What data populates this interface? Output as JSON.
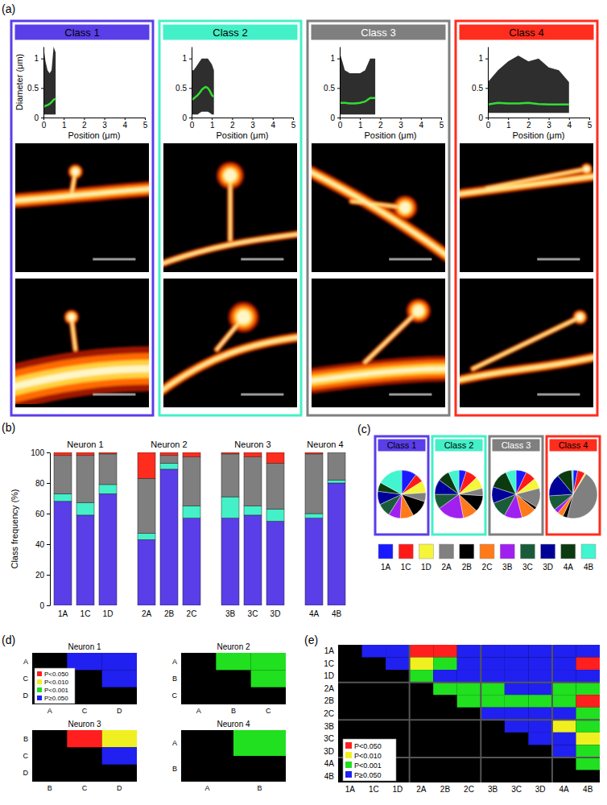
{
  "chart_data": [
    {
      "type": "line",
      "panel": "(a)",
      "title": "Class 1",
      "color": "#5a3ee8",
      "xlabel": "Position (μm)",
      "ylabel": "Diameter (μm)",
      "xlim": [
        0,
        5
      ],
      "xticks": [
        0,
        1,
        2,
        3,
        4,
        5
      ],
      "ylim": [
        0,
        1.2
      ],
      "yticks": [
        0,
        0.5,
        1
      ],
      "x": [
        0,
        0.1,
        0.2,
        0.3,
        0.4,
        0.5,
        0.6
      ],
      "series": [
        {
          "type": "area",
          "color": "#000000",
          "values": [
            1.2,
            0.95,
            0.8,
            0.75,
            0.8,
            1.2,
            1.1
          ],
          "lower": [
            0.05,
            0.05,
            0.05,
            0.05,
            0.05,
            0.05,
            0.05
          ]
        },
        {
          "type": "line",
          "color": "#33dd33",
          "values": [
            0.18,
            0.2,
            0.21,
            0.23,
            0.26,
            0.3,
            0.32
          ]
        }
      ]
    },
    {
      "type": "line",
      "title": "Class 2",
      "color": "#44f0c8",
      "xlabel": "Position (μm)",
      "xlim": [
        0,
        5
      ],
      "xticks": [
        0,
        1,
        2,
        3,
        4,
        5
      ],
      "ylim": [
        0,
        1.2
      ],
      "yticks": [
        0,
        0.5,
        1
      ],
      "x": [
        0,
        0.1,
        0.2,
        0.3,
        0.4,
        0.5,
        0.6,
        0.7,
        0.8,
        0.9,
        1,
        1.1
      ],
      "series": [
        {
          "type": "area",
          "color": "#000000",
          "values": [
            0.8,
            0.8,
            0.85,
            0.9,
            0.95,
            1,
            1,
            1,
            1,
            0.95,
            0.9,
            0.8
          ],
          "lower": [
            0.05,
            0.05,
            0.05,
            0.05,
            0.08,
            0.1,
            0.1,
            0.1,
            0.1,
            0.08,
            0.05,
            0.05
          ]
        },
        {
          "type": "line",
          "color": "#33dd33",
          "values": [
            0.3,
            0.32,
            0.35,
            0.38,
            0.42,
            0.47,
            0.5,
            0.52,
            0.5,
            0.45,
            0.38,
            0.35
          ]
        }
      ]
    },
    {
      "type": "line",
      "title": "Class 3",
      "color": "#7f7f7f",
      "xlabel": "Position (μm)",
      "xlim": [
        0,
        5
      ],
      "xticks": [
        0,
        1,
        2,
        3,
        4,
        5
      ],
      "ylim": [
        0,
        1.2
      ],
      "yticks": [
        0,
        0.5,
        1
      ],
      "x": [
        0,
        0.25,
        0.5,
        0.75,
        1,
        1.25,
        1.5,
        1.75
      ],
      "series": [
        {
          "type": "area",
          "color": "#000000",
          "values": [
            1.1,
            0.8,
            0.75,
            0.75,
            0.75,
            0.8,
            1,
            1
          ],
          "lower": [
            0.05,
            0.05,
            0.05,
            0.05,
            0.05,
            0.05,
            0.05,
            0.05
          ]
        },
        {
          "type": "line",
          "color": "#33dd33",
          "values": [
            0.25,
            0.25,
            0.24,
            0.24,
            0.25,
            0.27,
            0.33,
            0.33
          ]
        }
      ]
    },
    {
      "type": "line",
      "title": "Class 4",
      "color": "#ff2d1e",
      "xlabel": "Position (μm)",
      "xlim": [
        0,
        5
      ],
      "xticks": [
        0,
        1,
        2,
        3,
        4,
        5
      ],
      "ylim": [
        0,
        1.2
      ],
      "yticks": [
        0,
        0.5,
        1
      ],
      "x": [
        0,
        0.5,
        1,
        1.5,
        2,
        2.5,
        3,
        3.5,
        4
      ],
      "series": [
        {
          "type": "area",
          "color": "#000000",
          "values": [
            0.6,
            0.8,
            0.95,
            1.05,
            0.95,
            1,
            0.85,
            0.8,
            0.6
          ],
          "lower": [
            0.08,
            0.08,
            0.08,
            0.08,
            0.08,
            0.08,
            0.08,
            0.08,
            0.08
          ]
        },
        {
          "type": "line",
          "color": "#33dd33",
          "values": [
            0.22,
            0.25,
            0.24,
            0.24,
            0.25,
            0.23,
            0.22,
            0.22,
            0.22
          ]
        }
      ]
    },
    {
      "type": "bar",
      "panel": "(b)",
      "stacked": true,
      "ylabel": "Class frequency (%)",
      "ylim": [
        0,
        100
      ],
      "yticks": [
        0,
        20,
        40,
        60,
        80,
        100
      ],
      "groups": [
        {
          "label": "Neuron 1",
          "categories": [
            "1A",
            "1C",
            "1D"
          ]
        },
        {
          "label": "Neuron 2",
          "categories": [
            "2A",
            "2B",
            "2C"
          ]
        },
        {
          "label": "Neuron 3",
          "categories": [
            "3B",
            "3C",
            "3D"
          ]
        },
        {
          "label": "Neuron 4",
          "categories": [
            "4A",
            "4B"
          ]
        }
      ],
      "series": [
        {
          "color": "#5a3ee8",
          "values": [
            68,
            59,
            73,
            43,
            89,
            57,
            57,
            59,
            55,
            57,
            80
          ]
        },
        {
          "color": "#44f0c8",
          "values": [
            5,
            8,
            6,
            4,
            4,
            8,
            14,
            6,
            8,
            3,
            2
          ]
        },
        {
          "color": "#7f7f7f",
          "values": [
            25,
            31,
            20,
            36,
            5,
            32,
            28,
            32,
            30,
            39,
            18
          ]
        },
        {
          "color": "#ff2d1e",
          "values": [
            2,
            2,
            1,
            17,
            2,
            3,
            1,
            3,
            7,
            1,
            0
          ]
        }
      ]
    },
    {
      "type": "pie",
      "panel": "(c)",
      "legend": "bottom",
      "categories": [
        "1A",
        "1C",
        "1D",
        "2A",
        "2B",
        "2C",
        "3B",
        "3C",
        "3D",
        "4A",
        "4B"
      ],
      "colors": [
        "#1a1aff",
        "#ff1a1a",
        "#f5f53a",
        "#808080",
        "#000000",
        "#ff7a1a",
        "#a020f0",
        "#1a5c3a",
        "#000099",
        "#0b3a10",
        "#40f5d0"
      ],
      "series": [
        {
          "name": "Class 1",
          "color": "#5a3ee8",
          "values": [
            10,
            6,
            8,
            6,
            12,
            9,
            8,
            9,
            9,
            6,
            17
          ]
        },
        {
          "name": "Class 2",
          "color": "#44f0c8",
          "values": [
            5,
            8,
            8,
            5,
            11,
            10,
            18,
            10,
            10,
            8,
            7
          ]
        },
        {
          "name": "Class 3",
          "color": "#7f7f7f",
          "values": [
            7,
            7,
            7,
            13,
            2,
            10,
            12,
            11,
            11,
            13,
            7
          ]
        },
        {
          "name": "Class 4",
          "color": "#ff2d1e",
          "values": [
            3,
            5,
            1,
            45,
            3,
            4,
            3,
            10,
            15,
            10,
            1
          ]
        }
      ]
    },
    {
      "type": "heatmap",
      "panel": "(d)",
      "legend": "lower left",
      "levels": [
        {
          "label": "P<0.050",
          "color": "#ff1f1f"
        },
        {
          "label": "P<0.010",
          "color": "#f0f020"
        },
        {
          "label": "P<0.001",
          "color": "#20e020"
        },
        {
          "label": "P≥0.050",
          "color": "#2020f0"
        }
      ],
      "panels": [
        {
          "title": "Neuron 1",
          "labels": [
            "A",
            "C",
            "D"
          ],
          "cells": [
            [
              null,
              3,
              3
            ],
            [
              null,
              null,
              3
            ],
            [
              null,
              null,
              null
            ]
          ]
        },
        {
          "title": "Neuron 2",
          "labels": [
            "A",
            "B",
            "C"
          ],
          "cells": [
            [
              null,
              2,
              2
            ],
            [
              null,
              null,
              2
            ],
            [
              null,
              null,
              null
            ]
          ]
        },
        {
          "title": "Neuron 3",
          "labels": [
            "B",
            "C",
            "D"
          ],
          "cells": [
            [
              null,
              0,
              1
            ],
            [
              null,
              null,
              3
            ],
            [
              null,
              null,
              null
            ]
          ]
        },
        {
          "title": "Neuron 4",
          "labels": [
            "A",
            "B"
          ],
          "cells": [
            [
              null,
              2
            ],
            [
              null,
              null
            ]
          ]
        }
      ]
    },
    {
      "type": "heatmap",
      "panel": "(e)",
      "legend": "lower left",
      "levels": [
        {
          "label": "P<0.050",
          "color": "#ff1f1f"
        },
        {
          "label": "P<0.010",
          "color": "#f0f020"
        },
        {
          "label": "P<0.001",
          "color": "#20e020"
        },
        {
          "label": "P≥0.050",
          "color": "#2020f0"
        }
      ],
      "groups": [
        [
          "1A",
          "1C",
          "1D"
        ],
        [
          "2A",
          "2B",
          "2C"
        ],
        [
          "3B",
          "3C",
          "3D"
        ],
        [
          "4A",
          "4B"
        ]
      ],
      "cells": [
        [
          null,
          3,
          3,
          0,
          0,
          3,
          3,
          3,
          3,
          3,
          3
        ],
        [
          null,
          null,
          3,
          1,
          2,
          3,
          3,
          3,
          3,
          3,
          0
        ],
        [
          null,
          null,
          null,
          2,
          3,
          3,
          3,
          3,
          3,
          3,
          3
        ],
        [
          null,
          null,
          null,
          null,
          2,
          2,
          2,
          3,
          3,
          2,
          2
        ],
        [
          null,
          null,
          null,
          null,
          null,
          2,
          2,
          2,
          2,
          2,
          0
        ],
        [
          null,
          null,
          null,
          null,
          null,
          null,
          3,
          3,
          3,
          3,
          2
        ],
        [
          null,
          null,
          null,
          null,
          null,
          null,
          null,
          3,
          3,
          1,
          2
        ],
        [
          null,
          null,
          null,
          null,
          null,
          null,
          null,
          null,
          3,
          3,
          1
        ],
        [
          null,
          null,
          null,
          null,
          null,
          null,
          null,
          null,
          null,
          3,
          2
        ],
        [
          null,
          null,
          null,
          null,
          null,
          null,
          null,
          null,
          null,
          null,
          2
        ],
        [
          null,
          null,
          null,
          null,
          null,
          null,
          null,
          null,
          null,
          null,
          null
        ]
      ]
    }
  ]
}
